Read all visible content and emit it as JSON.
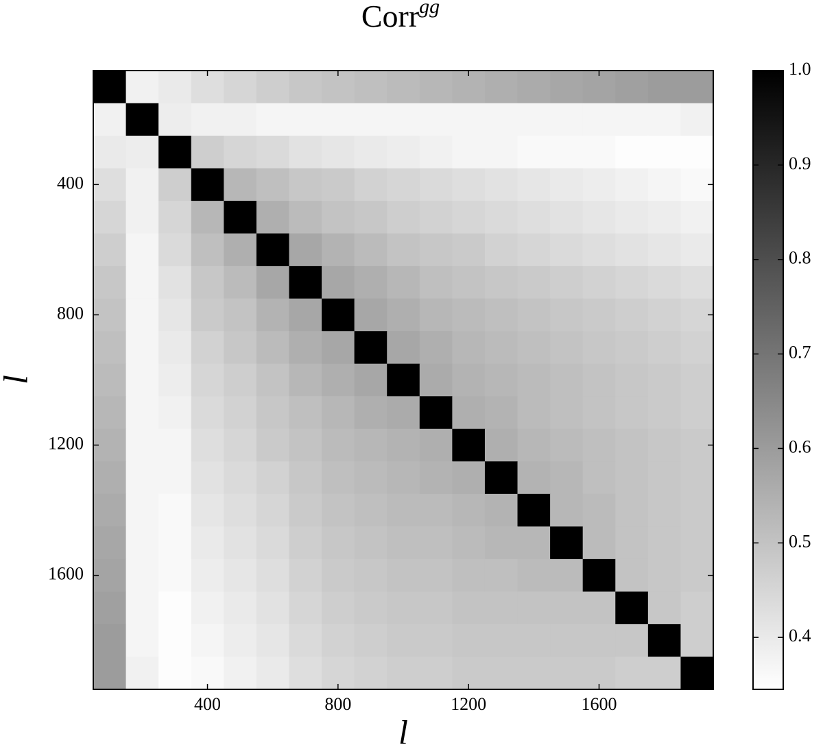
{
  "chart_data": {
    "type": "heatmap",
    "title": "Corr",
    "title_superscript": "gg",
    "xlabel": "l",
    "ylabel": "l",
    "x": [
      100,
      200,
      300,
      400,
      500,
      600,
      700,
      800,
      900,
      1000,
      1100,
      1200,
      1300,
      1400,
      1500,
      1600,
      1700,
      1800,
      1900
    ],
    "y": [
      100,
      200,
      300,
      400,
      500,
      600,
      700,
      800,
      900,
      1000,
      1100,
      1200,
      1300,
      1400,
      1500,
      1600,
      1700,
      1800,
      1900
    ],
    "xlim": [
      50,
      1950
    ],
    "ylim": [
      1950,
      50
    ],
    "xticks": [
      400,
      800,
      1200,
      1600
    ],
    "yticks": [
      400,
      800,
      1200,
      1600
    ],
    "colormap": "gray_r",
    "clim": [
      0.345,
      1.0
    ],
    "cticks": [
      0.4,
      0.5,
      0.6,
      0.7,
      0.8,
      0.9,
      {
        "value": 1,
        "label": "1.0"
      }
    ],
    "z": [
      [
        1.0,
        0.38,
        0.4,
        0.43,
        0.45,
        0.47,
        0.49,
        0.5,
        0.51,
        0.52,
        0.53,
        0.54,
        0.55,
        0.56,
        0.57,
        0.58,
        0.59,
        0.6,
        0.6
      ],
      [
        0.38,
        1.0,
        0.39,
        0.38,
        0.38,
        0.37,
        0.37,
        0.37,
        0.37,
        0.37,
        0.37,
        0.37,
        0.37,
        0.37,
        0.37,
        0.37,
        0.37,
        0.37,
        0.38
      ],
      [
        0.4,
        0.39,
        1.0,
        0.47,
        0.45,
        0.44,
        0.42,
        0.41,
        0.4,
        0.39,
        0.38,
        0.37,
        0.37,
        0.36,
        0.36,
        0.36,
        0.35,
        0.35,
        0.35
      ],
      [
        0.43,
        0.38,
        0.47,
        1.0,
        0.53,
        0.51,
        0.49,
        0.48,
        0.46,
        0.45,
        0.44,
        0.43,
        0.42,
        0.41,
        0.4,
        0.39,
        0.38,
        0.37,
        0.36
      ],
      [
        0.45,
        0.38,
        0.45,
        0.53,
        1.0,
        0.55,
        0.52,
        0.5,
        0.49,
        0.47,
        0.46,
        0.45,
        0.44,
        0.43,
        0.42,
        0.41,
        0.4,
        0.39,
        0.38
      ],
      [
        0.47,
        0.37,
        0.44,
        0.51,
        0.55,
        1.0,
        0.57,
        0.54,
        0.52,
        0.5,
        0.49,
        0.48,
        0.46,
        0.45,
        0.44,
        0.43,
        0.42,
        0.41,
        0.4
      ],
      [
        0.49,
        0.37,
        0.42,
        0.49,
        0.52,
        0.57,
        1.0,
        0.57,
        0.55,
        0.53,
        0.51,
        0.5,
        0.49,
        0.48,
        0.47,
        0.46,
        0.45,
        0.44,
        0.43
      ],
      [
        0.5,
        0.37,
        0.41,
        0.48,
        0.5,
        0.54,
        0.57,
        1.0,
        0.57,
        0.55,
        0.53,
        0.52,
        0.51,
        0.5,
        0.49,
        0.48,
        0.47,
        0.46,
        0.45
      ],
      [
        0.51,
        0.37,
        0.4,
        0.46,
        0.49,
        0.52,
        0.55,
        0.57,
        1.0,
        0.57,
        0.55,
        0.53,
        0.52,
        0.51,
        0.5,
        0.49,
        0.48,
        0.47,
        0.46
      ],
      [
        0.52,
        0.37,
        0.39,
        0.45,
        0.47,
        0.5,
        0.53,
        0.55,
        0.57,
        1.0,
        0.56,
        0.54,
        0.53,
        0.52,
        0.51,
        0.5,
        0.49,
        0.48,
        0.47
      ],
      [
        0.53,
        0.37,
        0.38,
        0.44,
        0.46,
        0.49,
        0.51,
        0.53,
        0.55,
        0.56,
        1.0,
        0.55,
        0.54,
        0.52,
        0.51,
        0.5,
        0.49,
        0.48,
        0.47
      ],
      [
        0.54,
        0.37,
        0.37,
        0.43,
        0.45,
        0.48,
        0.5,
        0.52,
        0.53,
        0.54,
        0.55,
        1.0,
        0.55,
        0.53,
        0.52,
        0.51,
        0.5,
        0.49,
        0.48
      ],
      [
        0.55,
        0.37,
        0.37,
        0.42,
        0.44,
        0.46,
        0.49,
        0.51,
        0.52,
        0.53,
        0.54,
        0.55,
        1.0,
        0.54,
        0.53,
        0.51,
        0.5,
        0.49,
        0.48
      ],
      [
        0.56,
        0.37,
        0.36,
        0.41,
        0.43,
        0.45,
        0.48,
        0.5,
        0.51,
        0.52,
        0.52,
        0.53,
        0.54,
        1.0,
        0.53,
        0.52,
        0.5,
        0.49,
        0.48
      ],
      [
        0.57,
        0.37,
        0.36,
        0.4,
        0.42,
        0.44,
        0.47,
        0.49,
        0.5,
        0.51,
        0.51,
        0.52,
        0.53,
        0.53,
        1.0,
        0.52,
        0.5,
        0.49,
        0.48
      ],
      [
        0.58,
        0.37,
        0.36,
        0.39,
        0.41,
        0.43,
        0.46,
        0.48,
        0.49,
        0.5,
        0.5,
        0.51,
        0.51,
        0.52,
        0.52,
        1.0,
        0.5,
        0.49,
        0.48
      ],
      [
        0.59,
        0.37,
        0.35,
        0.38,
        0.4,
        0.42,
        0.45,
        0.47,
        0.48,
        0.49,
        0.49,
        0.5,
        0.5,
        0.5,
        0.5,
        0.5,
        1.0,
        0.49,
        0.47
      ],
      [
        0.6,
        0.37,
        0.35,
        0.37,
        0.39,
        0.41,
        0.44,
        0.46,
        0.47,
        0.48,
        0.48,
        0.49,
        0.49,
        0.49,
        0.49,
        0.49,
        0.49,
        1.0,
        0.47
      ],
      [
        0.6,
        0.38,
        0.35,
        0.36,
        0.38,
        0.4,
        0.43,
        0.45,
        0.46,
        0.47,
        0.47,
        0.48,
        0.48,
        0.48,
        0.48,
        0.48,
        0.47,
        0.47,
        1.0
      ]
    ]
  }
}
